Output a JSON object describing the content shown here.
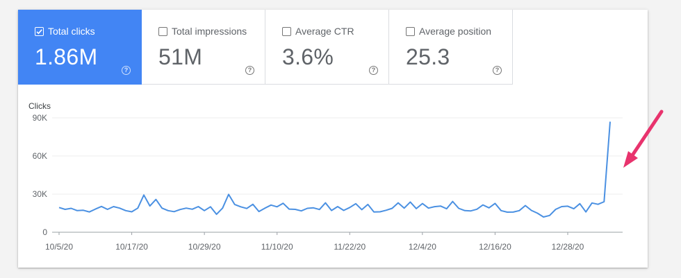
{
  "metrics": [
    {
      "label": "Total clicks",
      "value": "1.86M",
      "checked": true,
      "active": true
    },
    {
      "label": "Total impressions",
      "value": "51M",
      "checked": false,
      "active": false
    },
    {
      "label": "Average CTR",
      "value": "3.6%",
      "checked": false,
      "active": false
    },
    {
      "label": "Average position",
      "value": "25.3",
      "checked": false,
      "active": false
    }
  ],
  "help_glyph": "?",
  "icons": {
    "checkbox": "checkbox-icon",
    "help": "help-circle-icon",
    "annotation": "red-arrow-icon"
  },
  "colors": {
    "accent": "#4285f4",
    "line": "#4a90e2",
    "annotation_arrow": "#e8336d"
  },
  "chart_data": {
    "type": "line",
    "ylabel": "Clicks",
    "ylim": [
      0,
      90000
    ],
    "yticks": [
      0,
      30000,
      60000,
      90000
    ],
    "ytick_labels": [
      "0",
      "30K",
      "60K",
      "90K"
    ],
    "x_start": "10/5/20",
    "x_end": "1/3/21",
    "xtick_labels": [
      "10/5/20",
      "10/17/20",
      "10/29/20",
      "11/10/20",
      "11/22/20",
      "12/4/20",
      "12/16/20",
      "12/28/20"
    ],
    "grid": true,
    "series": [
      {
        "values": [
          19500,
          18000,
          18800,
          17000,
          17300,
          16000,
          18200,
          20300,
          18000,
          20200,
          19000,
          17000,
          16100,
          19000,
          29300,
          20700,
          25800,
          19000,
          17000,
          16200,
          17900,
          19000,
          18100,
          20200,
          17000,
          20000,
          14100,
          19000,
          29800,
          21900,
          20000,
          18700,
          22000,
          16300,
          19000,
          21400,
          20000,
          22800,
          18200,
          18000,
          16800,
          18800,
          19200,
          17900,
          23100,
          17100,
          20200,
          17200,
          19500,
          22500,
          17800,
          21900,
          16000,
          16100,
          17300,
          18800,
          23100,
          19000,
          23800,
          18600,
          22600,
          19000,
          20100,
          20600,
          18500,
          24200,
          18800,
          17000,
          16800,
          18100,
          21500,
          19200,
          22700,
          17000,
          15800,
          15900,
          17000,
          21000,
          17200,
          15000,
          12000,
          13200,
          18000,
          20200,
          20500,
          18500,
          22500,
          16000,
          23000,
          22000,
          24000,
          87000
        ]
      }
    ]
  }
}
